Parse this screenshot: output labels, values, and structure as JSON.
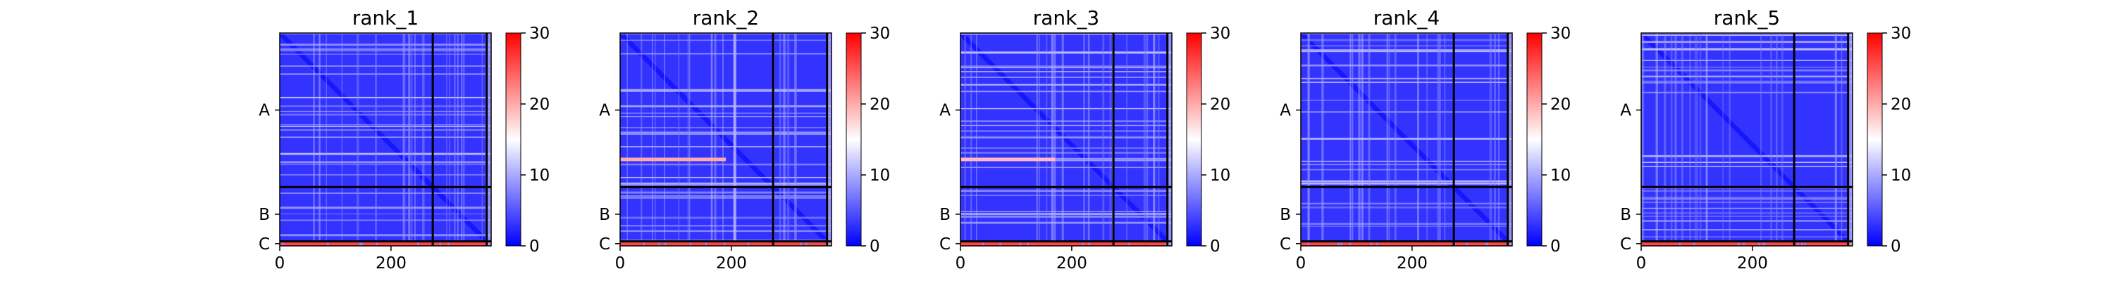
{
  "chart_data": [
    {
      "type": "heatmap",
      "title": "rank_1",
      "x_ticks": [
        0,
        200
      ],
      "x_range": [
        0,
        380
      ],
      "chain_labels": [
        "A",
        "B",
        "C"
      ],
      "chain_boundaries": [
        275,
        372
      ],
      "colorbar": {
        "ticks": [
          0,
          10,
          20,
          30
        ],
        "range": [
          0,
          30
        ],
        "colormap": [
          "#0000ff",
          "#ffffff",
          "#ff0000"
        ]
      },
      "background_level": 3,
      "stripe_levels": {
        "A": 12,
        "B": 10,
        "C": 26
      },
      "extra_stripes": []
    },
    {
      "type": "heatmap",
      "title": "rank_2",
      "x_ticks": [
        0,
        200
      ],
      "x_range": [
        0,
        380
      ],
      "chain_labels": [
        "A",
        "B",
        "C"
      ],
      "chain_boundaries": [
        275,
        372
      ],
      "colorbar": {
        "ticks": [
          0,
          10,
          20,
          30
        ],
        "range": [
          0,
          30
        ],
        "colormap": [
          "#0000ff",
          "#ffffff",
          "#ff0000"
        ]
      },
      "background_level": 3,
      "stripe_levels": {
        "A": 12,
        "B": 10,
        "C": 26
      },
      "extra_stripes": [
        {
          "row": 225,
          "x_from": 0,
          "x_to": 190,
          "level": 20
        }
      ]
    },
    {
      "type": "heatmap",
      "title": "rank_3",
      "x_ticks": [
        0,
        200
      ],
      "x_range": [
        0,
        380
      ],
      "chain_labels": [
        "A",
        "B",
        "C"
      ],
      "chain_boundaries": [
        275,
        372
      ],
      "colorbar": {
        "ticks": [
          0,
          10,
          20,
          30
        ],
        "range": [
          0,
          30
        ],
        "colormap": [
          "#0000ff",
          "#ffffff",
          "#ff0000"
        ]
      },
      "background_level": 3,
      "stripe_levels": {
        "A": 12,
        "B": 10,
        "C": 26
      },
      "extra_stripes": [
        {
          "row": 225,
          "x_from": 0,
          "x_to": 170,
          "level": 19
        }
      ]
    },
    {
      "type": "heatmap",
      "title": "rank_4",
      "x_ticks": [
        0,
        200
      ],
      "x_range": [
        0,
        380
      ],
      "chain_labels": [
        "A",
        "B",
        "C"
      ],
      "chain_boundaries": [
        275,
        372
      ],
      "colorbar": {
        "ticks": [
          0,
          10,
          20,
          30
        ],
        "range": [
          0,
          30
        ],
        "colormap": [
          "#0000ff",
          "#ffffff",
          "#ff0000"
        ]
      },
      "background_level": 3,
      "stripe_levels": {
        "A": 12,
        "B": 10,
        "C": 26
      },
      "extra_stripes": []
    },
    {
      "type": "heatmap",
      "title": "rank_5",
      "x_ticks": [
        0,
        200
      ],
      "x_range": [
        0,
        380
      ],
      "chain_labels": [
        "A",
        "B",
        "C"
      ],
      "chain_boundaries": [
        275,
        372
      ],
      "colorbar": {
        "ticks": [
          0,
          10,
          20,
          30
        ],
        "range": [
          0,
          30
        ],
        "colormap": [
          "#0000ff",
          "#ffffff",
          "#ff0000"
        ]
      },
      "background_level": 3,
      "stripe_levels": {
        "A": 12,
        "B": 10,
        "C": 26
      },
      "extra_stripes": []
    }
  ]
}
